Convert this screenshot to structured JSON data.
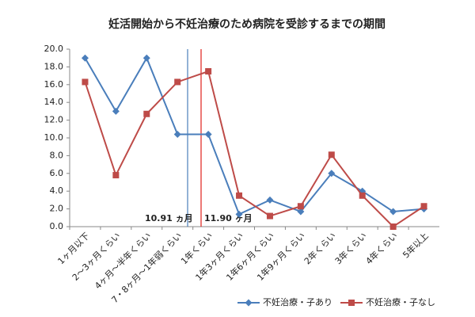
{
  "chart_data": {
    "type": "line",
    "title": "妊活開始から不妊治療のため病院を受診するまでの期間",
    "categories": [
      "1ヶ月以下",
      "2～3ヶ月くらい",
      "4ヶ月～半年くらい",
      "7・8ヶ月～1年弱くらい",
      "1年くらい",
      "1年3ヶ月くらい",
      "1年6ヶ月くらい",
      "1年9ヶ月くらい",
      "2年くらい",
      "3年くらい",
      "4年くらい",
      "5年以上"
    ],
    "series": [
      {
        "name": "不妊治療・子あり",
        "color": "#4a7ebb",
        "marker": "diamond",
        "values": [
          19.0,
          13.0,
          19.0,
          10.4,
          10.4,
          1.4,
          3.0,
          1.7,
          6.0,
          4.0,
          1.7,
          2.0
        ]
      },
      {
        "name": "不妊治療・子なし",
        "color": "#be4b48",
        "marker": "square",
        "values": [
          16.3,
          5.8,
          12.7,
          16.3,
          17.5,
          3.5,
          1.2,
          2.3,
          8.1,
          3.5,
          0.0,
          2.3
        ]
      }
    ],
    "ylim": [
      0,
      20
    ],
    "yticks": [
      {
        "value": 0,
        "label": "0.0"
      },
      {
        "value": 2,
        "label": "2.0"
      },
      {
        "value": 4,
        "label": "4.0"
      },
      {
        "value": 6,
        "label": "6.0"
      },
      {
        "value": 8,
        "label": "8.0"
      },
      {
        "value": 10,
        "label": "10.0"
      },
      {
        "value": 12,
        "label": "12.0"
      },
      {
        "value": 14,
        "label": "14.0"
      },
      {
        "value": 16,
        "label": "16.0"
      },
      {
        "value": 18,
        "label": "18.0"
      },
      {
        "value": 20,
        "label": "20.0"
      }
    ],
    "annotations": [
      {
        "text": "10.91 ヵ月",
        "color": "#1f3864",
        "line_color": "#4a7ebb"
      },
      {
        "text": "11.90 ヶ月",
        "color": "#e0201b",
        "line_color": "#e0201b"
      }
    ],
    "grid": false,
    "legend": "bottom"
  }
}
